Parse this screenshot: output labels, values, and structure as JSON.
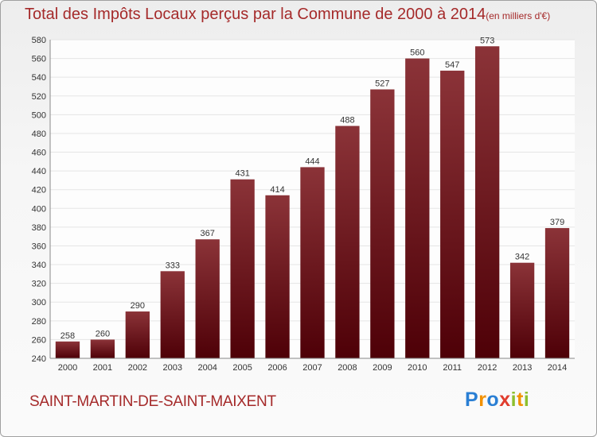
{
  "header": {
    "title": "Total des Impôts Locaux perçus par la Commune de 2000 à 2014",
    "unit": "(en milliers d'€)"
  },
  "footer": {
    "commune": "SAINT-MARTIN-DE-SAINT-MAIXENT",
    "logo_letters": [
      "P",
      "r",
      "o",
      "x",
      "i",
      "t",
      "i"
    ]
  },
  "colors": {
    "bar_top": "#8b3338",
    "bar_bottom": "#4e0007",
    "title": "#a52a2a",
    "grid": "#e5e5e5"
  },
  "chart_data": {
    "type": "bar",
    "title": "Total des Impôts Locaux perçus par la Commune de 2000 à 2014",
    "xlabel": "",
    "ylabel": "en milliers d'€",
    "categories": [
      "2000",
      "2001",
      "2002",
      "2003",
      "2004",
      "2005",
      "2006",
      "2007",
      "2008",
      "2009",
      "2010",
      "2011",
      "2012",
      "2013",
      "2014"
    ],
    "values": [
      258,
      260,
      290,
      333,
      367,
      431,
      414,
      444,
      488,
      527,
      560,
      547,
      573,
      342,
      379
    ],
    "ylim": [
      240,
      580
    ],
    "ytick_step": 20,
    "grid": true
  }
}
